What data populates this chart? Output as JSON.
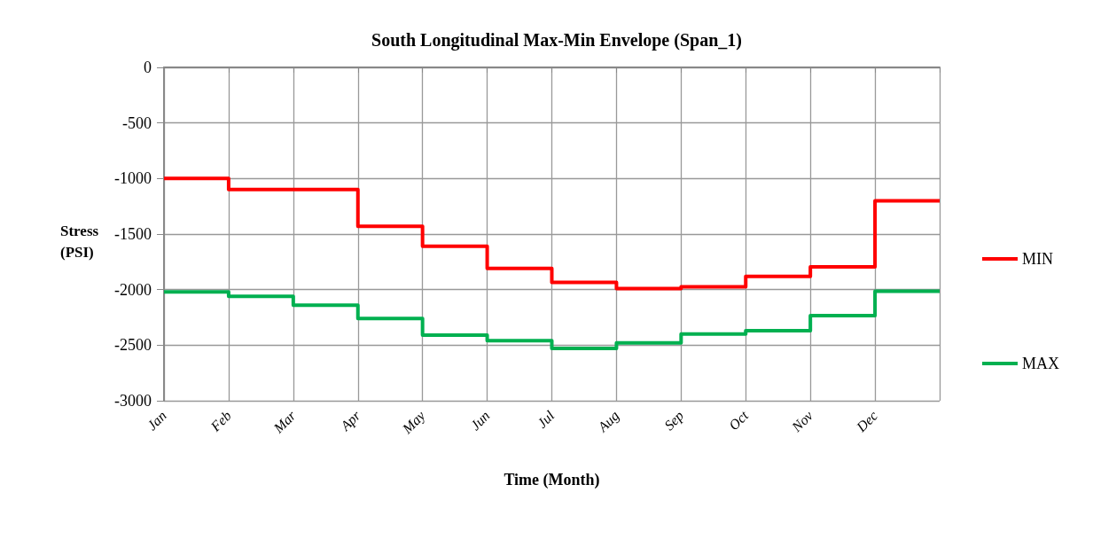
{
  "chart_data": {
    "type": "step",
    "title": "South Longitudinal Max-Min Envelope (Span_1)",
    "xlabel": "Time (Month)",
    "ylabel": "Stress\n(PSI)",
    "categories": [
      "Jan",
      "Feb",
      "Mar",
      "Apr",
      "May",
      "Jun",
      "Jul",
      "Aug",
      "Sep",
      "Oct",
      "Nov",
      "Dec",
      null
    ],
    "series": [
      {
        "name": "MIN",
        "color": "#ff0000",
        "values": [
          -1000,
          -1100,
          -1100,
          -1430,
          -1610,
          -1810,
          -1935,
          -1990,
          -1975,
          -1880,
          -1795,
          -1200,
          -1200
        ]
      },
      {
        "name": "MAX",
        "color": "#00b050",
        "values": [
          -2020,
          -2060,
          -2140,
          -2260,
          -2410,
          -2460,
          -2530,
          -2480,
          -2400,
          -2370,
          -2235,
          -2015,
          -2015
        ]
      }
    ],
    "ylim": [
      -3000,
      0
    ],
    "yticks": [
      -3000,
      -2500,
      -2000,
      -1500,
      -1000,
      -500,
      0
    ],
    "grid": true,
    "legend": "right",
    "marker": "none",
    "line_style": "solid"
  }
}
